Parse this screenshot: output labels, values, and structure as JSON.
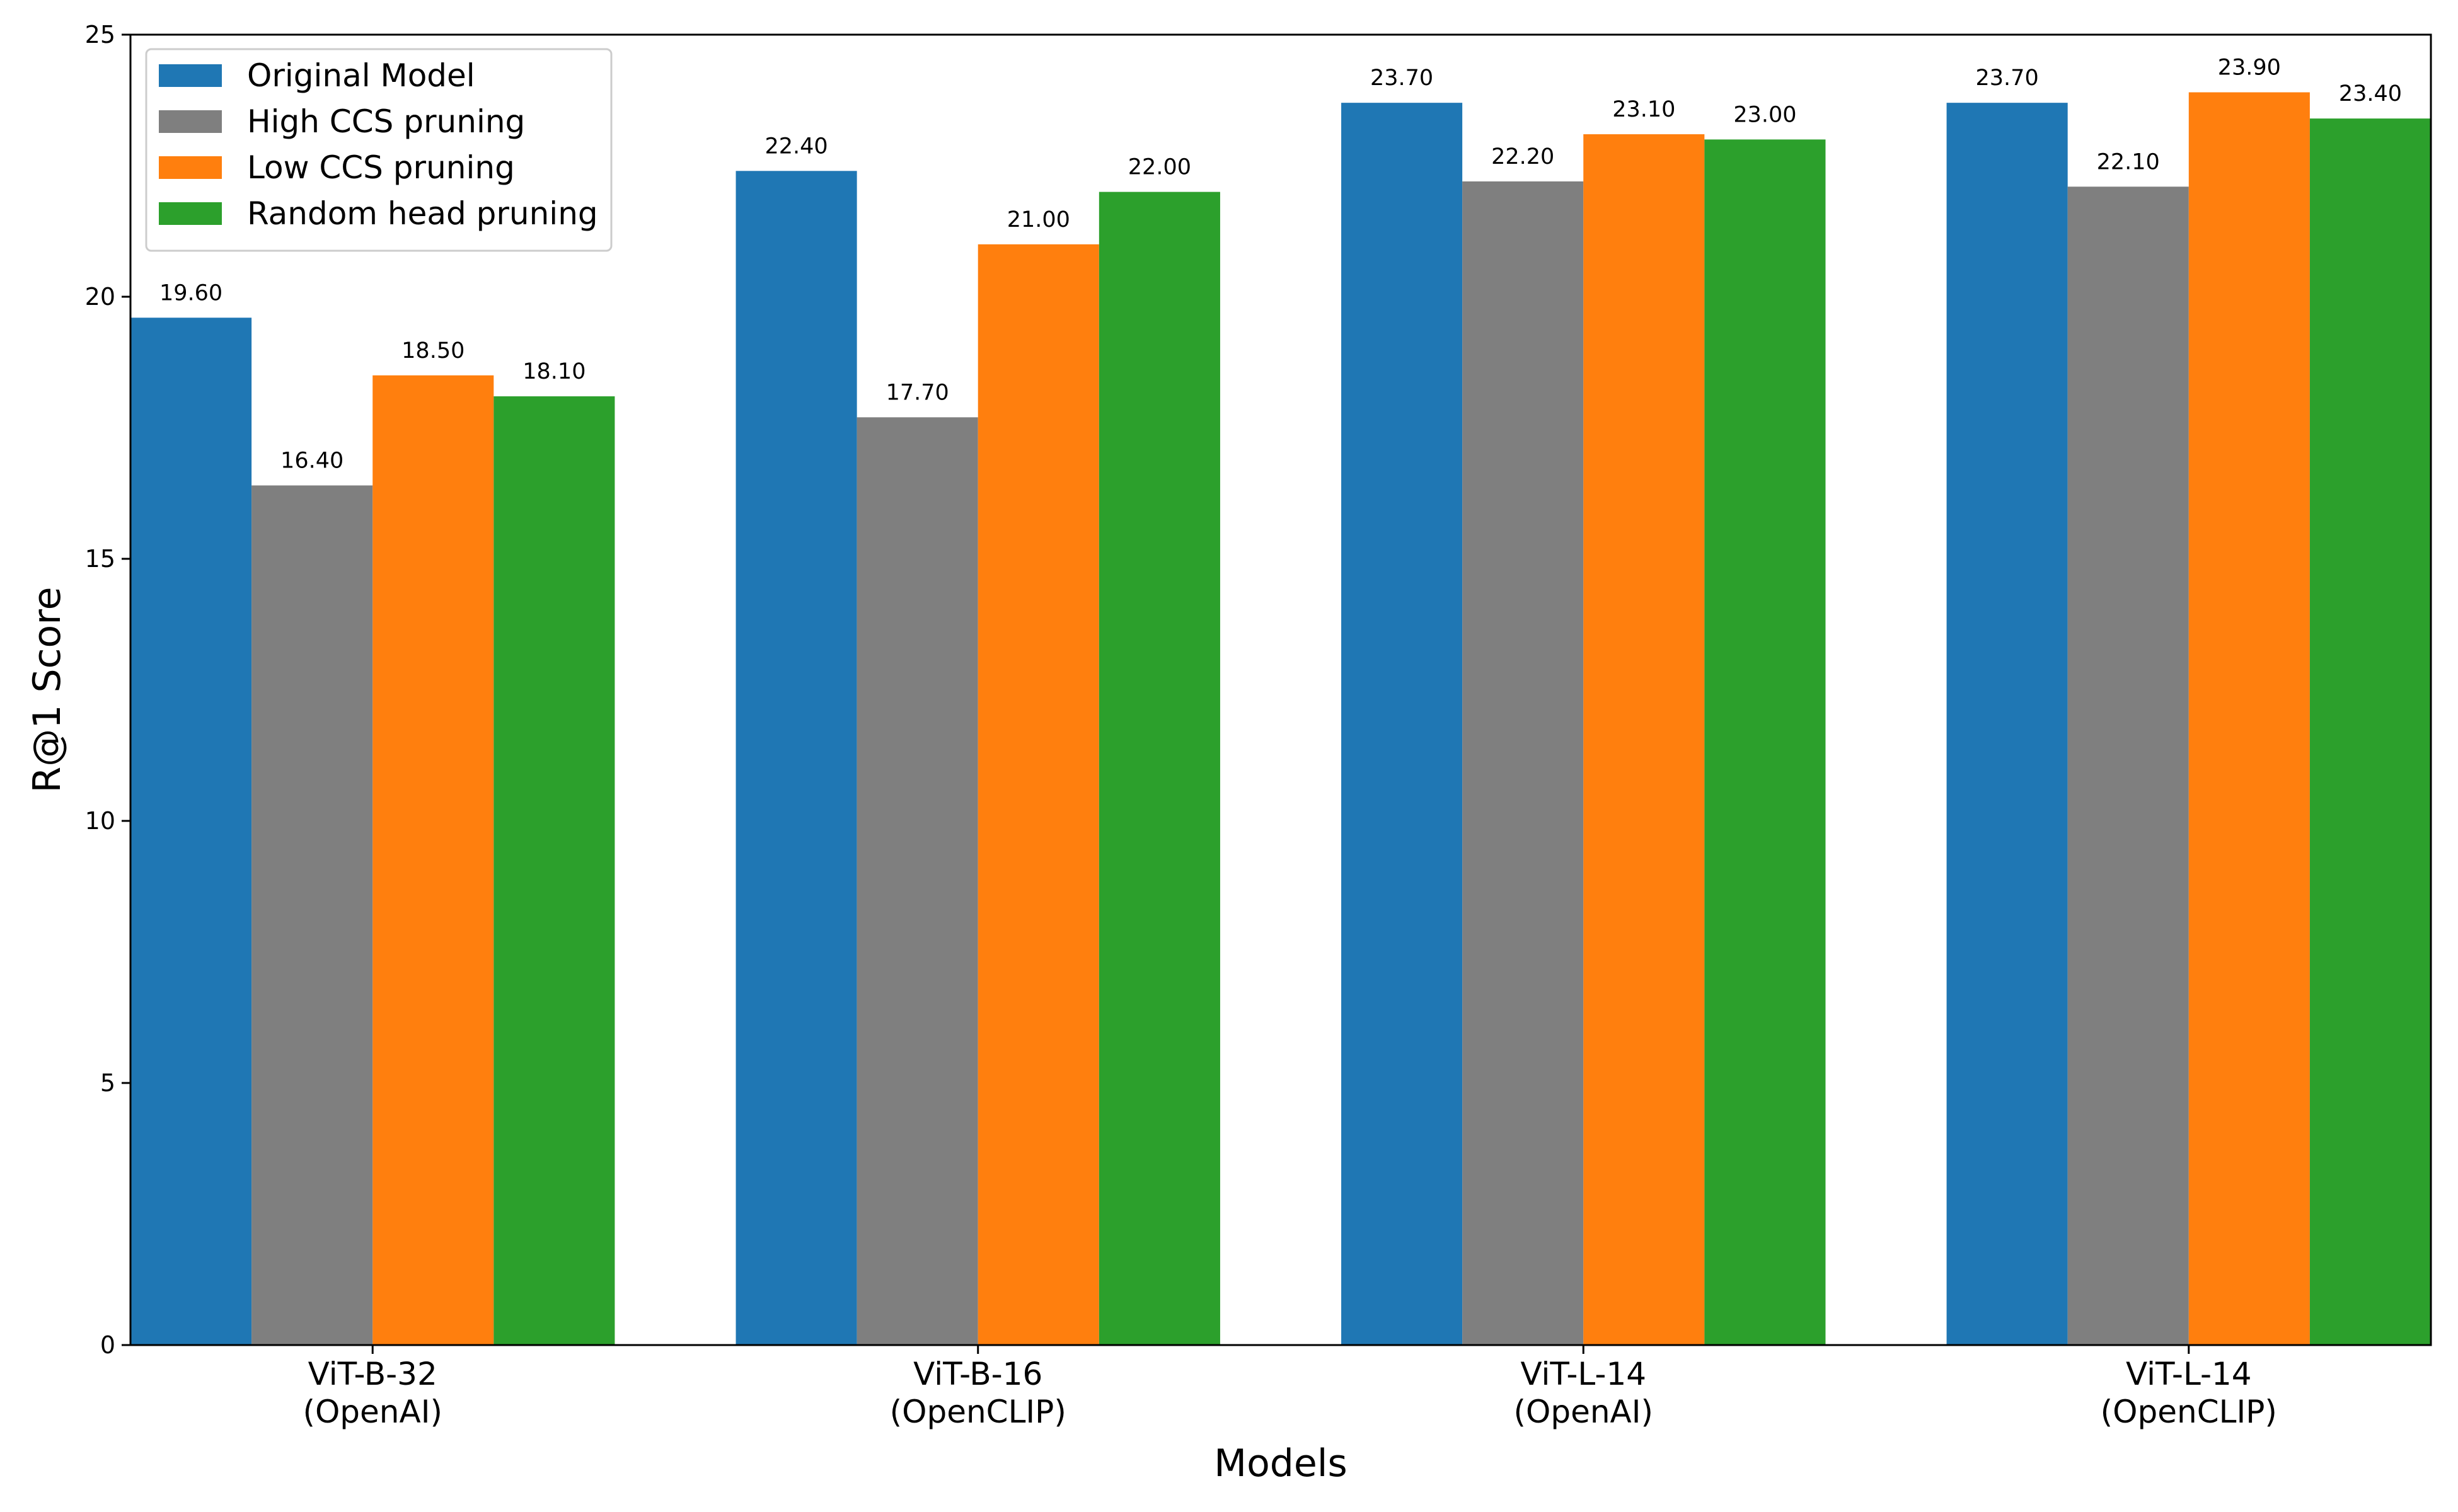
{
  "chart_data": {
    "type": "bar",
    "title": "",
    "xlabel": "Models",
    "ylabel": "R@1 Score",
    "ylim": [
      0,
      25
    ],
    "yticks": [
      0,
      5,
      10,
      15,
      20,
      25
    ],
    "categories": [
      [
        "ViT-B-32",
        "(OpenAI)"
      ],
      [
        "ViT-B-16",
        "(OpenCLIP)"
      ],
      [
        "ViT-L-14",
        "(OpenAI)"
      ],
      [
        "ViT-L-14",
        "(OpenCLIP)"
      ]
    ],
    "series": [
      {
        "name": "Original Model",
        "color": "#1f77b4",
        "values": [
          19.6,
          22.4,
          23.7,
          23.7
        ],
        "labels": [
          "19.60",
          "22.40",
          "23.70",
          "23.70"
        ]
      },
      {
        "name": "High CCS pruning",
        "color": "#7f7f7f",
        "values": [
          16.4,
          17.7,
          22.2,
          22.1
        ],
        "labels": [
          "16.40",
          "17.70",
          "22.20",
          "22.10"
        ]
      },
      {
        "name": "Low CCS pruning",
        "color": "#ff7f0e",
        "values": [
          18.5,
          21.0,
          23.1,
          23.9
        ],
        "labels": [
          "18.50",
          "21.00",
          "23.10",
          "23.90"
        ]
      },
      {
        "name": "Random head pruning",
        "color": "#2ca02c",
        "values": [
          18.1,
          22.0,
          23.0,
          23.4
        ],
        "labels": [
          "18.10",
          "22.00",
          "23.00",
          "23.40"
        ]
      }
    ],
    "legend_position": "top-left",
    "grid": false
  }
}
